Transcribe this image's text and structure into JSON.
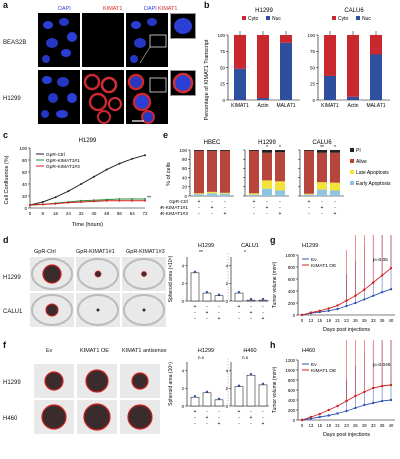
{
  "figure": {
    "a": {
      "letter": "a",
      "col_labels": [
        "DAPI",
        "KIMAT1",
        "DAPI",
        "KIMAT1"
      ],
      "row_labels": [
        "BEAS2B",
        "H1299"
      ]
    },
    "b": {
      "letter": "b",
      "panels": [
        {
          "title": "H1299",
          "categories": [
            "KIMAT1",
            "Actin",
            "MALAT1"
          ],
          "nuc": [
            48,
            3,
            88
          ],
          "cyto": [
            52,
            97,
            12
          ]
        },
        {
          "title": "CALU6",
          "categories": [
            "KIMAT1",
            "Actin",
            "MALAT1"
          ],
          "nuc": [
            37,
            5,
            70
          ],
          "cyto": [
            63,
            95,
            30
          ]
        }
      ],
      "legend": [
        "Cyto",
        "Nuc"
      ],
      "ylabel": "Percentage of KIMAT1 Transcript",
      "yticks": [
        "0",
        "25",
        "50",
        "75",
        "100"
      ]
    },
    "c": {
      "letter": "c",
      "title": "H1299",
      "ylabel": "Cell Confluence (%)",
      "xlabel": "Time (hours)",
      "xticks": [
        "0",
        "8",
        "16",
        "24",
        "32",
        "40",
        "48",
        "56",
        "64",
        "72"
      ],
      "yticks": [
        "0",
        "20",
        "40",
        "60",
        "80",
        "100"
      ],
      "legend": [
        "GpR-Ctrl",
        "GpR-KIMAT1#1",
        "GpR-KIMAT1#3"
      ],
      "sig": "**"
    },
    "e": {
      "letter": "e",
      "titles": [
        "HBEC",
        "H1299",
        "CALU6"
      ],
      "ylabel": "% of cells",
      "yticks": [
        "0",
        "20",
        "40",
        "60",
        "80",
        "100"
      ],
      "legend": [
        "PI",
        "Alive",
        "Late Apoptosis",
        "Early Apoptosis"
      ],
      "rows": [
        "GpR-Ctrl",
        "GpR-KIMAT1#1",
        "GpR-KIMAT1#3"
      ],
      "signs": [
        [
          "+",
          "-",
          "-"
        ],
        [
          "-",
          "+",
          "-"
        ],
        [
          "-",
          "-",
          "+"
        ]
      ]
    },
    "d": {
      "letter": "d",
      "col_labels": [
        "GpR-Ctrl",
        "GpR-KIMAT1#1",
        "GpR-KIMAT1#3"
      ],
      "row_labels": [
        "H1299",
        "CALU1"
      ],
      "chart_titles": [
        "H1299",
        "CALU1"
      ],
      "ylabel": "Spheroid area (×10⁵)",
      "rows": [
        "GpR-Ctrl",
        "GpR-KIMAT1#1",
        "GpR-KIMAT1#3"
      ],
      "sig": [
        "**",
        "*"
      ]
    },
    "g": {
      "letter": "g",
      "title": "H1299",
      "legend": [
        "Ev",
        "KIMAT1 OE"
      ],
      "pval": "p=0.05",
      "ylabel": "Tumor volume (mm³)",
      "xlabel": "Days post injections",
      "xticks": [
        "0",
        "13",
        "15",
        "19",
        "21",
        "23",
        "26",
        "29",
        "33",
        "36",
        "40"
      ],
      "yticks": [
        "0",
        "200",
        "400",
        "600",
        "800",
        "1000"
      ]
    },
    "f": {
      "letter": "f",
      "col_labels": [
        "Ev",
        "KIMAT1 OE",
        "KIMAT1 antisense"
      ],
      "row_labels": [
        "H1299",
        "H460"
      ],
      "chart_titles": [
        "H1299",
        "H460"
      ],
      "ylabel": "Spheroid area (10⁵)",
      "rows": [
        "Ev",
        "KIMAT1 OE",
        "KIMAT1 antisense"
      ],
      "ns": "n.s"
    },
    "h": {
      "letter": "h",
      "title": "H460",
      "legend": [
        "Ev",
        "KIMAT1 OE"
      ],
      "pval": "p=0.046",
      "ylabel": "Tumor volume (mm³)",
      "xlabel": "Days post injections",
      "xticks": [
        "0",
        "13",
        "15",
        "19",
        "21",
        "23",
        "26",
        "29",
        "33",
        "36",
        "40"
      ],
      "yticks": [
        "0",
        "200",
        "400",
        "600",
        "800",
        "1000",
        "1200"
      ]
    }
  },
  "chart_data": [
    {
      "id": "b-H1299",
      "type": "bar",
      "stacked": true,
      "categories": [
        "KIMAT1",
        "Actin",
        "MALAT1"
      ],
      "series": [
        {
          "name": "Nuc",
          "values": [
            48,
            3,
            88
          ]
        },
        {
          "name": "Cyto",
          "values": [
            52,
            97,
            12
          ]
        }
      ],
      "ylim": [
        0,
        100
      ]
    },
    {
      "id": "b-CALU6",
      "type": "bar",
      "stacked": true,
      "categories": [
        "KIMAT1",
        "Actin",
        "MALAT1"
      ],
      "series": [
        {
          "name": "Nuc",
          "values": [
            37,
            5,
            70
          ]
        },
        {
          "name": "Cyto",
          "values": [
            63,
            95,
            30
          ]
        }
      ],
      "ylim": [
        0,
        100
      ]
    },
    {
      "id": "c",
      "type": "line",
      "x": [
        0,
        8,
        16,
        24,
        32,
        40,
        48,
        56,
        64,
        72
      ],
      "series": [
        {
          "name": "GpR-Ctrl",
          "values": [
            5,
            10,
            18,
            28,
            40,
            52,
            64,
            74,
            82,
            88
          ]
        },
        {
          "name": "GpR-KIMAT1#1",
          "values": [
            5,
            6,
            8,
            10,
            12,
            13,
            14,
            15,
            15,
            15
          ]
        },
        {
          "name": "GpR-KIMAT1#3",
          "values": [
            5,
            6,
            7,
            9,
            10,
            11,
            12,
            12,
            12,
            12
          ]
        }
      ],
      "ylim": [
        0,
        100
      ]
    },
    {
      "id": "e",
      "type": "bar",
      "stacked": true,
      "groups": [
        "HBEC",
        "H1299",
        "CALU6"
      ],
      "series": [
        {
          "name": "Early Apoptosis",
          "values": [
            [
              4,
              6,
              5
            ],
            [
              3,
              16,
              12
            ],
            [
              3,
              14,
              12
            ]
          ]
        },
        {
          "name": "Late Apoptosis",
          "values": [
            [
              2,
              3,
              2
            ],
            [
              3,
              18,
              20
            ],
            [
              2,
              16,
              17
            ]
          ]
        },
        {
          "name": "Alive",
          "values": [
            [
              92,
              89,
              91
            ],
            [
              92,
              60,
              63
            ],
            [
              93,
              64,
              65
            ]
          ]
        },
        {
          "name": "PI",
          "values": [
            [
              2,
              2,
              2
            ],
            [
              2,
              6,
              5
            ],
            [
              2,
              6,
              6
            ]
          ]
        }
      ],
      "ylim": [
        0,
        100
      ]
    },
    {
      "id": "d",
      "type": "bar",
      "groups": [
        "H1299",
        "CALU1"
      ],
      "values": [
        [
          3.2,
          0.9,
          0.6
        ],
        [
          0.9,
          0.1,
          0.1
        ]
      ],
      "ylim": [
        0,
        5
      ]
    },
    {
      "id": "g",
      "type": "line",
      "x": [
        0,
        13,
        15,
        19,
        21,
        23,
        26,
        29,
        33,
        36,
        40
      ],
      "series": [
        {
          "name": "Ev",
          "values": [
            0,
            30,
            50,
            70,
            100,
            150,
            200,
            260,
            320,
            380,
            430
          ]
        },
        {
          "name": "KIMAT1 OE",
          "values": [
            0,
            40,
            70,
            110,
            160,
            240,
            320,
            420,
            540,
            660,
            780
          ]
        }
      ],
      "ylim": [
        0,
        1000
      ]
    },
    {
      "id": "f",
      "type": "bar",
      "groups": [
        "H1299",
        "H460"
      ],
      "values": [
        [
          1.0,
          1.5,
          0.7
        ],
        [
          2.2,
          3.5,
          2.4
        ]
      ],
      "ylim": [
        0,
        5
      ]
    },
    {
      "id": "h",
      "type": "line",
      "x": [
        0,
        13,
        15,
        19,
        21,
        23,
        26,
        29,
        33,
        36,
        40
      ],
      "series": [
        {
          "name": "Ev",
          "values": [
            0,
            30,
            60,
            90,
            130,
            180,
            240,
            300,
            340,
            380,
            400
          ]
        },
        {
          "name": "KIMAT1 OE",
          "values": [
            0,
            60,
            120,
            200,
            280,
            380,
            480,
            560,
            640,
            680,
            700
          ]
        }
      ],
      "ylim": [
        0,
        1200
      ]
    }
  ]
}
